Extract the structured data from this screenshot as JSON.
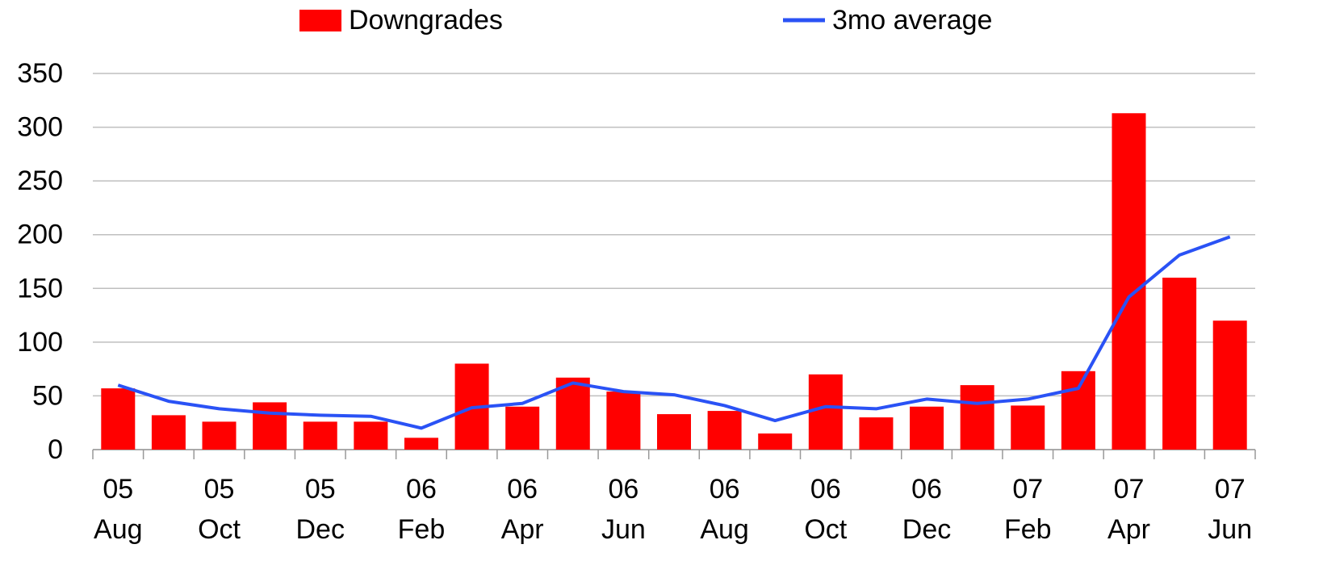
{
  "chart_data": {
    "type": "bar_line",
    "categories": [
      "05 Aug",
      null,
      "05 Oct",
      null,
      "05 Dec",
      null,
      "06 Feb",
      null,
      "06 Apr",
      null,
      "06 Jun",
      null,
      "06 Aug",
      null,
      "06 Oct",
      null,
      "06 Dec",
      null,
      "07 Feb",
      null,
      "07 Apr",
      null,
      "07 Jun"
    ],
    "series": [
      {
        "name": "Downgrades",
        "type": "bar",
        "color": "#ff0000",
        "values": [
          57,
          32,
          26,
          44,
          26,
          26,
          11,
          80,
          40,
          67,
          54,
          33,
          36,
          15,
          70,
          30,
          40,
          60,
          41,
          73,
          313,
          160,
          120
        ]
      },
      {
        "name": "3mo average",
        "type": "line",
        "color": "#2a52f5",
        "values": [
          60,
          45,
          38,
          34,
          32,
          31,
          20,
          39,
          43,
          62,
          54,
          51,
          41,
          27,
          40,
          38,
          47,
          43,
          47,
          57,
          142,
          181,
          198
        ]
      }
    ],
    "ylim": [
      0,
      350
    ],
    "yticks": [
      0,
      50,
      100,
      150,
      200,
      250,
      300,
      350
    ],
    "grid": true,
    "legend": "top"
  }
}
